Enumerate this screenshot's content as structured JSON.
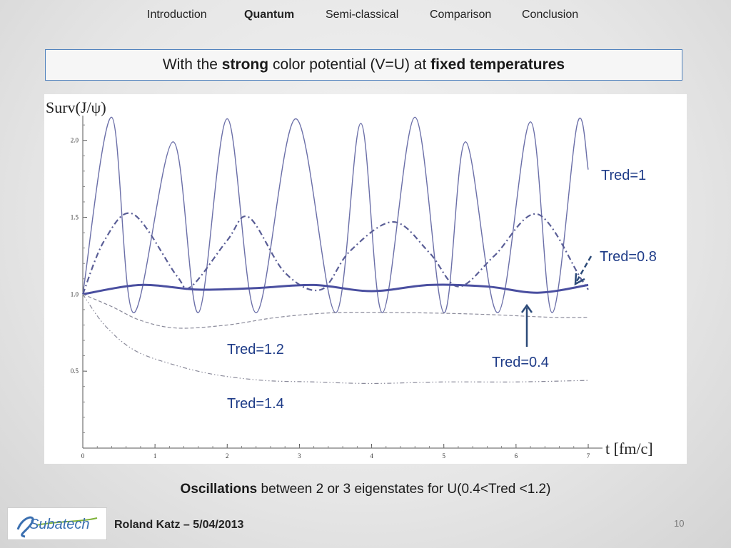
{
  "nav": {
    "items": [
      {
        "label": "Introduction",
        "active": false
      },
      {
        "label": "Quantum",
        "active": true
      },
      {
        "label": "Semi-classical",
        "active": false
      },
      {
        "label": "Comparison",
        "active": false
      },
      {
        "label": "Conclusion",
        "active": false
      }
    ]
  },
  "title": {
    "part1": "With the ",
    "bold1": "strong",
    "part2": " color potential (V=U) at ",
    "bold2": "fixed temperatures"
  },
  "chart_data": {
    "type": "line",
    "ylabel": "Surv(J/ψ)",
    "xlabel": "t [fm/c]",
    "xlim": [
      0,
      7
    ],
    "ylim": [
      0,
      2.3
    ],
    "x_ticks": [
      "0",
      "1",
      "2",
      "3",
      "4",
      "5",
      "6",
      "7"
    ],
    "y_ticks": [
      "0.5",
      "1.0",
      "1.5",
      "2.0"
    ],
    "grid": false,
    "series": [
      {
        "name": "Tred=1",
        "style": "solid-thin",
        "color": "#6b6fa8",
        "x": [
          0,
          0.4,
          0.7,
          1.25,
          1.6,
          2.0,
          2.4,
          2.95,
          3.5,
          3.85,
          4.15,
          4.6,
          5.0,
          5.3,
          5.75,
          6.2,
          6.5,
          6.85,
          7.0
        ],
        "y": [
          1.0,
          2.15,
          0.88,
          1.99,
          0.88,
          2.14,
          0.88,
          2.14,
          0.88,
          2.11,
          0.88,
          2.15,
          0.88,
          1.99,
          0.88,
          2.12,
          0.88,
          2.11,
          1.81
        ]
      },
      {
        "name": "Tred=0.8",
        "style": "dash-dot",
        "color": "#5a5e96",
        "x": [
          0,
          0.3,
          0.7,
          1.3,
          1.5,
          2.0,
          2.3,
          2.8,
          3.3,
          3.7,
          4.3,
          4.8,
          5.2,
          5.7,
          6.3,
          6.9,
          7.0
        ],
        "y": [
          1.0,
          1.35,
          1.52,
          1.12,
          1.05,
          1.35,
          1.5,
          1.14,
          1.03,
          1.28,
          1.47,
          1.27,
          1.05,
          1.25,
          1.52,
          1.1,
          1.03
        ]
      },
      {
        "name": "Tred=0.4",
        "style": "solid-thick",
        "color": "#4a4fa0",
        "x": [
          0,
          0.8,
          1.6,
          2.4,
          3.2,
          4.0,
          4.8,
          5.6,
          6.3,
          7.0
        ],
        "y": [
          1.0,
          1.06,
          1.03,
          1.04,
          1.06,
          1.02,
          1.06,
          1.05,
          1.01,
          1.06
        ]
      },
      {
        "name": "Tred=1.2",
        "style": "dashed",
        "color": "#8a8a9a",
        "x": [
          0,
          0.4,
          0.8,
          1.3,
          2.0,
          2.7,
          3.5,
          4.5,
          5.5,
          6.5,
          7.0
        ],
        "y": [
          1.0,
          0.92,
          0.83,
          0.78,
          0.8,
          0.85,
          0.88,
          0.88,
          0.87,
          0.85,
          0.85
        ]
      },
      {
        "name": "Tred=1.4",
        "style": "dash-dot-dot",
        "color": "#8a8a9a",
        "x": [
          0,
          0.3,
          0.7,
          1.2,
          1.8,
          2.5,
          3.2,
          4.0,
          5.0,
          6.0,
          7.0
        ],
        "y": [
          1.0,
          0.8,
          0.64,
          0.55,
          0.48,
          0.44,
          0.43,
          0.42,
          0.43,
          0.43,
          0.44
        ]
      }
    ],
    "annotations": [
      "Tred=1",
      "Tred=0.8",
      "Tred=0.4",
      "Tred=1.2",
      "Tred=1.4"
    ]
  },
  "caption": {
    "bold": "Oscillations",
    "rest": " between 2 or 3 eigenstates for U(0.4<Tred <1.2)"
  },
  "footer": {
    "logo_text": "Subatech",
    "author": "Roland Katz – 5/04/2013",
    "page": "10"
  },
  "colors": {
    "title_border": "#4f81bd",
    "label_blue": "#1f3c88",
    "arrow": "#2c4a78"
  }
}
